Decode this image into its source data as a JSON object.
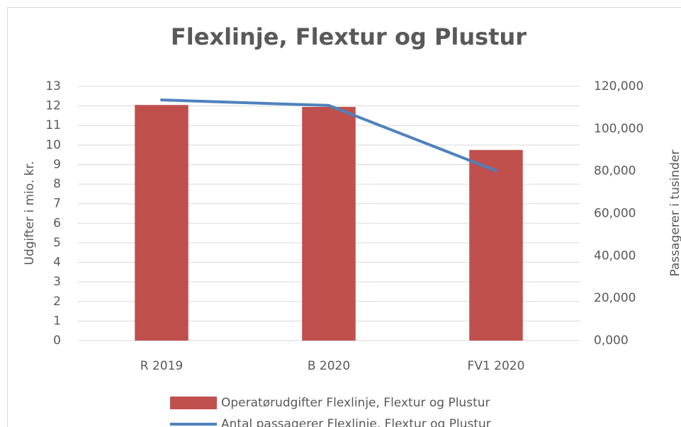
{
  "chart_data": {
    "type": "bar-line",
    "title": "Flexlinje, Flextur og Plustur",
    "ylabel": "Udgifter i mio. kr.",
    "y2label": "Passagerer i tusinder",
    "categories": [
      "R 2019",
      "B 2020",
      "FV1 2020"
    ],
    "series": [
      {
        "name": "Operatørudgifter Flexlinje, Flextur og Plustur",
        "type": "bar",
        "axis": "y",
        "color": "#c0504d",
        "values": [
          12.05,
          11.95,
          9.75
        ]
      },
      {
        "name": "Antal passagerer Flexlinje, Flextur og Plustur",
        "type": "line",
        "axis": "y2",
        "color": "#4f81bd",
        "values": [
          113600,
          111000,
          80200
        ]
      }
    ],
    "ylim": [
      0,
      13
    ],
    "yticks": [
      0,
      1,
      2,
      3,
      4,
      5,
      6,
      7,
      8,
      9,
      10,
      11,
      12,
      13
    ],
    "y2lim": [
      0,
      120000
    ],
    "y2ticks": [
      {
        "value": 0,
        "label": "0,000"
      },
      {
        "value": 20000,
        "label": "20,000"
      },
      {
        "value": 40000,
        "label": "40,000"
      },
      {
        "value": 60000,
        "label": "60,000"
      },
      {
        "value": 80000,
        "label": "80,000"
      },
      {
        "value": 100000,
        "label": "100,000"
      },
      {
        "value": 120000,
        "label": "120,000"
      }
    ],
    "grid": true,
    "legend": "bottom"
  }
}
